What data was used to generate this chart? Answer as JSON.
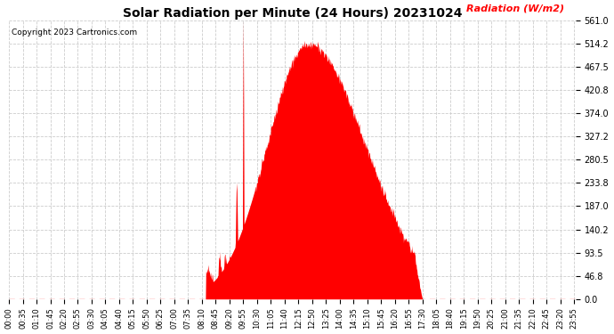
{
  "title": "Solar Radiation per Minute (24 Hours) 20231024",
  "copyright_text": "Copyright 2023 Cartronics.com",
  "ylabel": "Radiation (W/m2)",
  "ylabel_color": "#ff0000",
  "fill_color": "#ff0000",
  "background_color": "#ffffff",
  "grid_color": "#cccccc",
  "yticks": [
    0.0,
    46.8,
    93.5,
    140.2,
    187.0,
    233.8,
    280.5,
    327.2,
    374.0,
    420.8,
    467.5,
    514.2,
    561.0
  ],
  "ymin": 0.0,
  "ymax": 561.0,
  "xtick_interval_minutes": 35,
  "total_minutes": 1440,
  "sunrise_min": 500,
  "sunset_min": 1050,
  "peak_min": 760,
  "peak_val": 514.2,
  "spike_min": 595,
  "spike_val": 561.0,
  "spike2_min": 578,
  "spike2_val": 234.0
}
